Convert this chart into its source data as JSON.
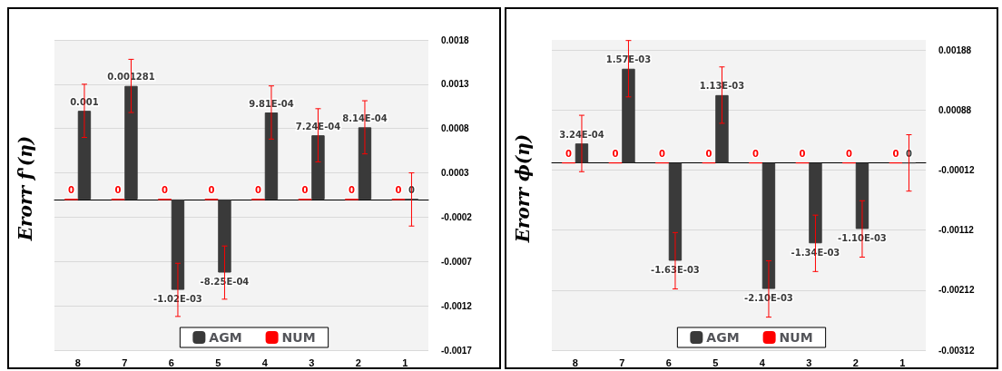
{
  "chart_data": [
    {
      "type": "bar",
      "ylabel": "Erorr f'(η)",
      "categories": [
        "8",
        "7",
        "6",
        "5",
        "4",
        "3",
        "2",
        "1"
      ],
      "series": [
        {
          "name": "AGM",
          "color": "#3a3a3a",
          "values": [
            0.001,
            0.001281,
            -0.00102,
            -0.000825,
            0.000981,
            0.000724,
            0.000814,
            0
          ],
          "errors": [
            0.0003,
            0.0003,
            0.0003,
            0.0003,
            0.0003,
            0.0003,
            0.0003,
            0.0003
          ],
          "value_labels": [
            "0.001",
            "0.001281",
            "-1.02E-03",
            "-8.25E-04",
            "9.81E-04",
            "7.24E-04",
            "8.14E-04",
            "0"
          ]
        },
        {
          "name": "NUM",
          "color": "#ff0000",
          "values": [
            0,
            0,
            0,
            0,
            0,
            0,
            0,
            0
          ],
          "value_labels": [
            "0",
            "0",
            "0",
            "0",
            "0",
            "0",
            "0",
            "0"
          ]
        }
      ],
      "ylim": [
        -0.0017,
        0.0018
      ],
      "yticks": [
        -0.0017,
        -0.0012,
        -0.0007,
        -0.0002,
        0.0003,
        0.0008,
        0.0013,
        0.0018
      ],
      "grid": "y",
      "legend": "bottom"
    },
    {
      "type": "bar",
      "ylabel": "Erorr ϕ(η)",
      "categories": [
        "8",
        "7",
        "6",
        "5",
        "4",
        "3",
        "2",
        "1"
      ],
      "series": [
        {
          "name": "AGM",
          "color": "#3a3a3a",
          "values": [
            0.000324,
            0.00157,
            -0.00163,
            0.00113,
            -0.0021,
            -0.00134,
            -0.0011,
            0
          ],
          "errors": [
            0.00047,
            0.00047,
            0.00047,
            0.00047,
            0.00047,
            0.00047,
            0.00047,
            0.00047
          ],
          "value_labels": [
            "3.24E-04",
            "1.57E-03",
            "-1.63E-03",
            "1.13E-03",
            "-2.10E-03",
            "-1.34E-03",
            "-1.10E-03",
            "0"
          ]
        },
        {
          "name": "NUM",
          "color": "#ff0000",
          "values": [
            0,
            0,
            0,
            0,
            0,
            0,
            0,
            0
          ],
          "value_labels": [
            "0",
            "0",
            "0",
            "0",
            "0",
            "0",
            "0",
            "0"
          ]
        }
      ],
      "ylim": [
        -0.00312,
        0.00205
      ],
      "yticks": [
        -0.00312,
        -0.00212,
        -0.00112,
        -0.00012,
        0.00088,
        0.00188
      ],
      "grid": "y",
      "legend": "bottom"
    }
  ]
}
